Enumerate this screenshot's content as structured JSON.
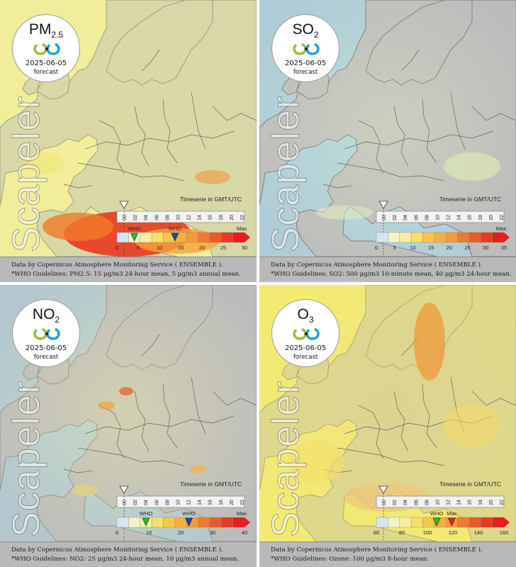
{
  "timeserie_label": "Timeserie in GMT/UTC",
  "date": "2025-06-05",
  "forecast_label": "forecast",
  "watermark": "Scapeler",
  "logo_colors": {
    "green": "#9cbd3b",
    "blue": "#1f9fd8",
    "dot": "#222222"
  },
  "time_ticks": [
    "00",
    "02",
    "04",
    "06",
    "08",
    "10",
    "12",
    "14",
    "16",
    "18",
    "20",
    "22"
  ],
  "panels": [
    {
      "pollutant": "PM",
      "pollutant_sub": "2.5",
      "ticks": [
        "0",
        "5",
        "10",
        "15",
        "20",
        "25",
        "30"
      ],
      "max_label": "Max",
      "who_labels": [
        "WHO",
        "WHO"
      ],
      "caption_line1": "Data by Copernicus Atmosphere Monitoring Service ( ENSEMBLE ).",
      "caption_line2": "*WHO Guidelines: PM2.5: 15 μg/m3 24-hour mean, 5 μg/m3 annual mean."
    },
    {
      "pollutant": "SO",
      "pollutant_sub": "2",
      "ticks": [
        "0",
        "5",
        "10",
        "15",
        "20",
        "25",
        "30",
        "35"
      ],
      "max_label": "Max",
      "who_labels": [],
      "caption_line1": "Data by Copernicus Atmosphere Monitoring Service ( ENSEMBLE ).",
      "caption_line2": "*WHO Guidelines: SO2: 500 μg/m3 10-minute mean, 40 μg/m3 24-hour mean."
    },
    {
      "pollutant": "NO",
      "pollutant_sub": "2",
      "ticks": [
        "0",
        "10",
        "20",
        "30",
        "40"
      ],
      "max_label": "Max",
      "who_labels": [
        "WHO",
        "WHO"
      ],
      "caption_line1": "Data by Copernicus Atmosphere Monitoring Service ( ENSEMBLE ).",
      "caption_line2": "*WHO Guidelines: NO2: 25 μg/m3 24-hour mean, 10 μg/m3 annual mean."
    },
    {
      "pollutant": "O",
      "pollutant_sub": "3",
      "ticks": [
        "60",
        "80",
        "100",
        "120",
        "140",
        "160"
      ],
      "max_label": "Max",
      "who_labels": [
        "WHO"
      ],
      "caption_line1": "Data by Copernicus Atmosphere Monitoring Service ( ENSEMBLE ).",
      "caption_line2": "*WHO Guidelines: Ozone: 100 μg/m3 8-hour mean."
    }
  ]
}
